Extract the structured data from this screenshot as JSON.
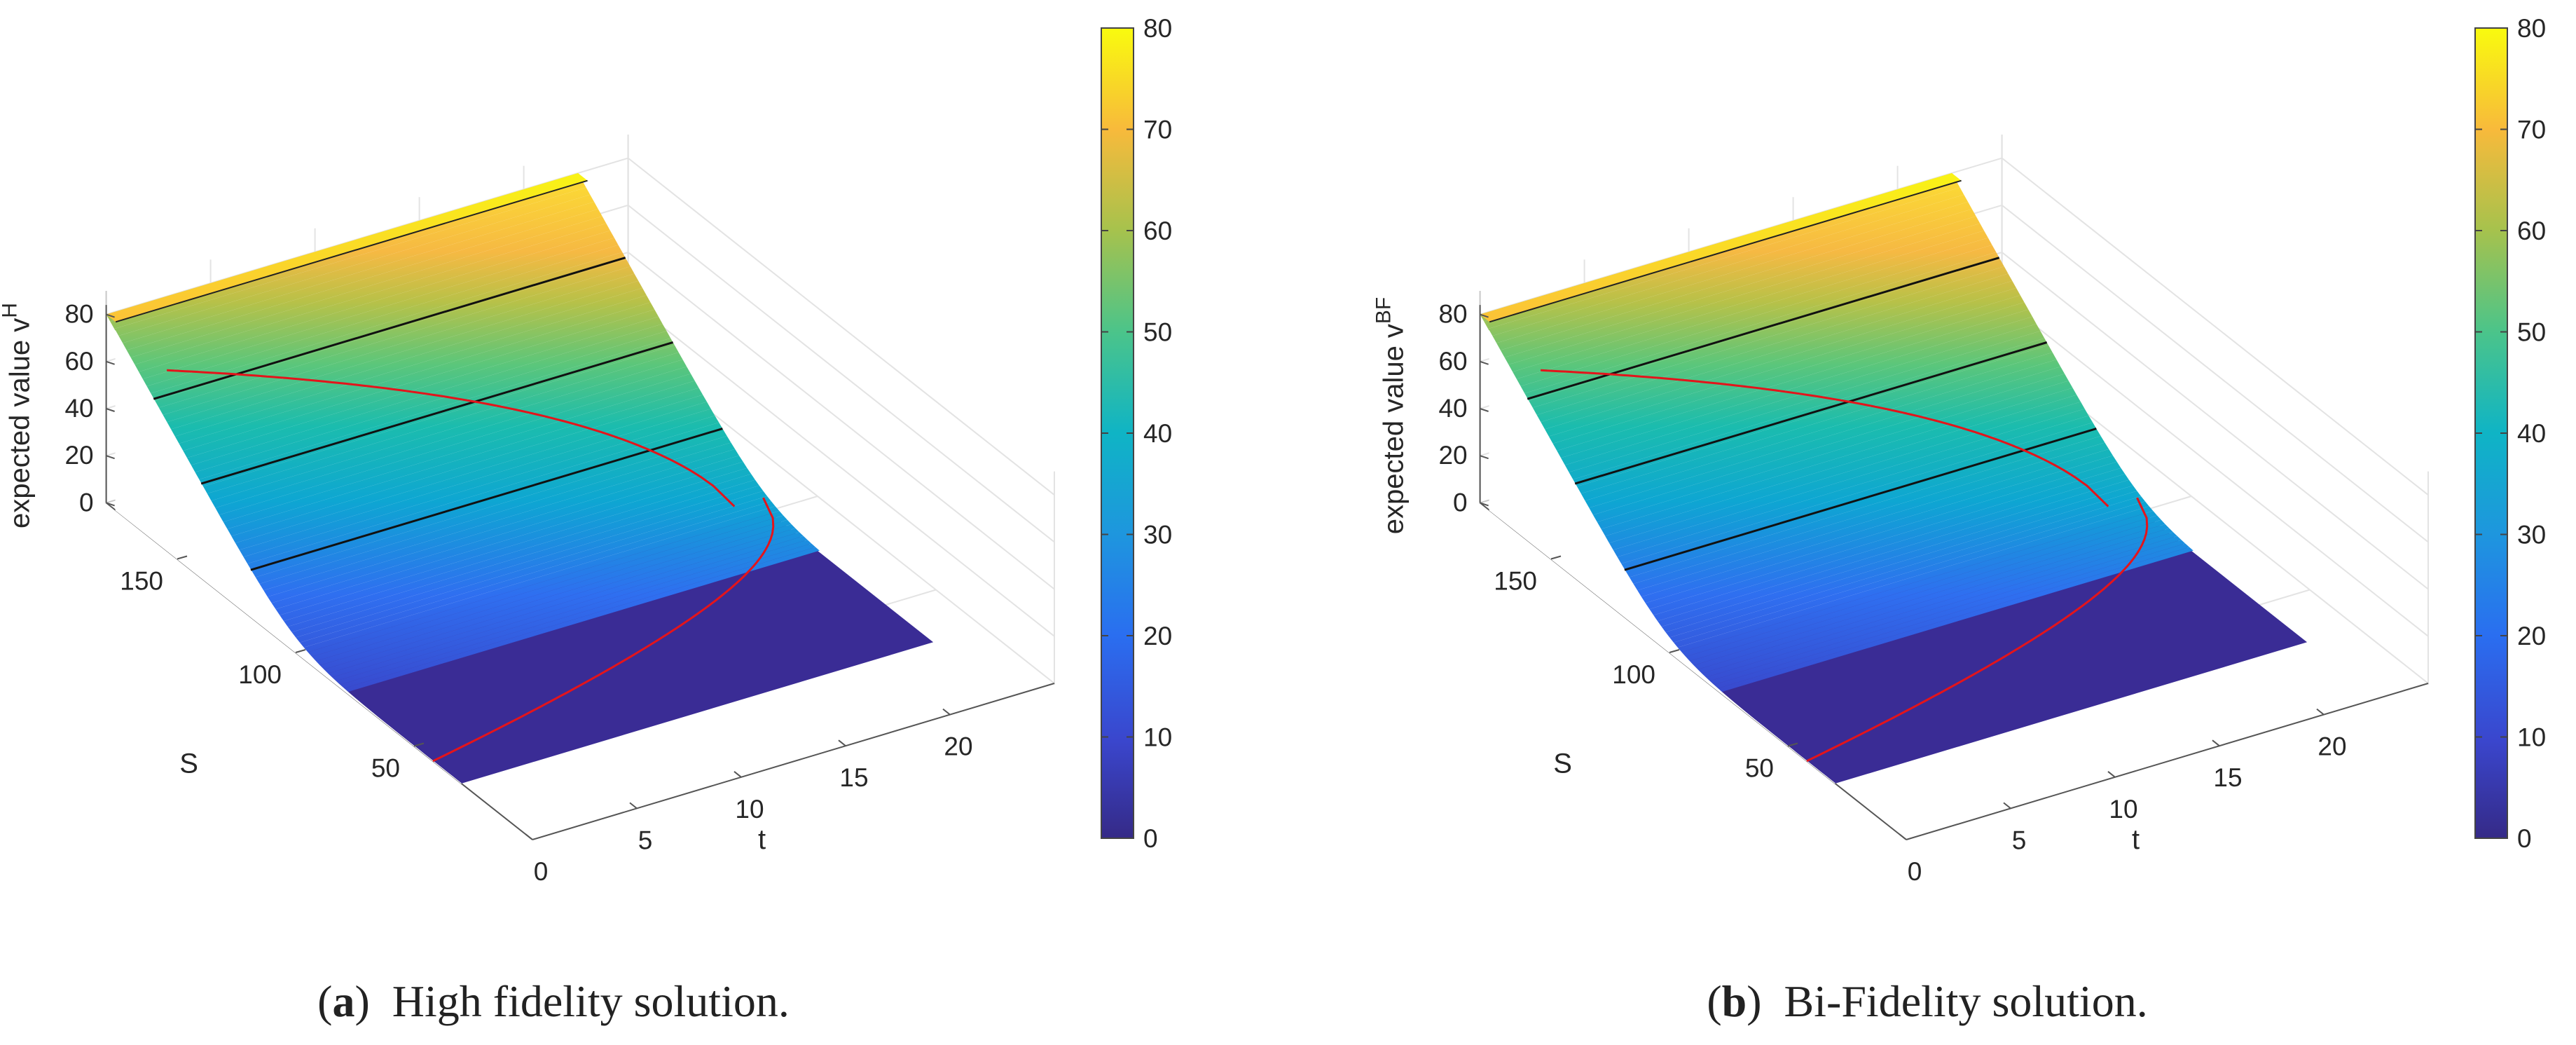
{
  "chart_data": [
    {
      "type": "surface",
      "panel_label": "a",
      "caption": "High fidelity solution.",
      "zlabel_base": "expected value v",
      "zlabel_sup": "H",
      "xlabel": "t",
      "ylabel": "S",
      "t_ticks": [
        "0",
        "5",
        "10",
        "15",
        "20"
      ],
      "S_ticks": [
        "50",
        "100",
        "150"
      ],
      "z_ticks": [
        "0",
        "20",
        "40",
        "60",
        "80"
      ],
      "colorbar_ticks": [
        "0",
        "10",
        "20",
        "30",
        "40",
        "50",
        "60",
        "70",
        "80"
      ],
      "t_range": [
        0,
        25
      ],
      "S_range": [
        0,
        180
      ],
      "z_range": [
        0,
        80
      ],
      "colorbar_range": [
        0,
        80
      ],
      "strike": 100,
      "contour_levels": [
        20,
        40,
        60
      ],
      "boundary_curve_color": "red",
      "colormap": "parula"
    },
    {
      "type": "surface",
      "panel_label": "b",
      "caption": "Bi-Fidelity solution.",
      "zlabel_base": "expected value v",
      "zlabel_sup": "BF",
      "xlabel": "t",
      "ylabel": "S",
      "t_ticks": [
        "0",
        "5",
        "10",
        "15",
        "20"
      ],
      "S_ticks": [
        "50",
        "100",
        "150"
      ],
      "z_ticks": [
        "0",
        "20",
        "40",
        "60",
        "80"
      ],
      "colorbar_ticks": [
        "0",
        "10",
        "20",
        "30",
        "40",
        "50",
        "60",
        "70",
        "80"
      ],
      "t_range": [
        0,
        25
      ],
      "S_range": [
        0,
        180
      ],
      "z_range": [
        0,
        80
      ],
      "colorbar_range": [
        0,
        80
      ],
      "strike": 100,
      "contour_levels": [
        20,
        40,
        60
      ],
      "boundary_curve_color": "red",
      "colormap": "parula"
    }
  ]
}
